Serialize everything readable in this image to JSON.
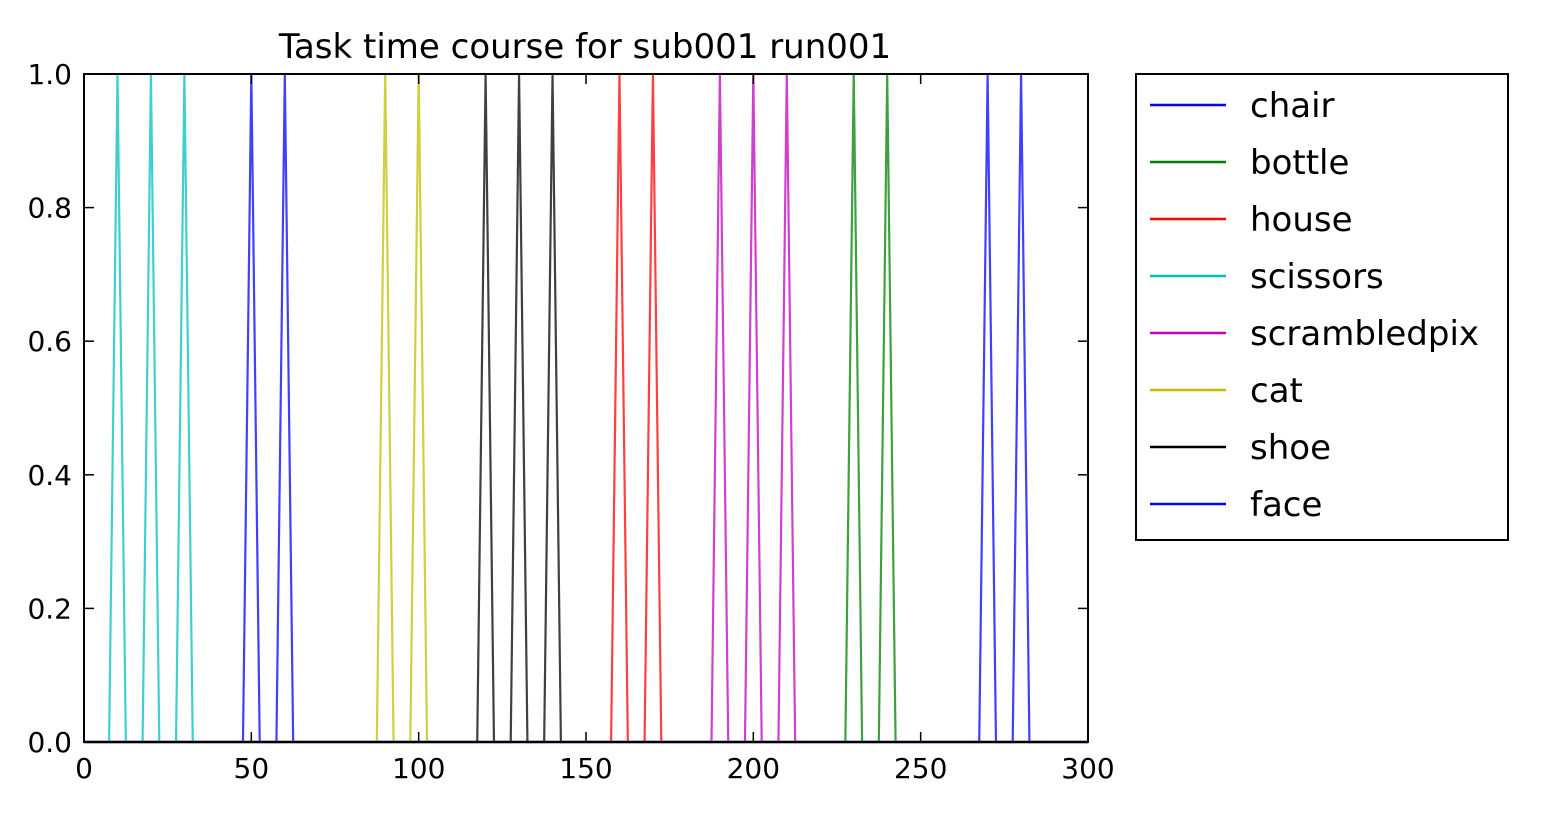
{
  "chart_data": {
    "type": "line",
    "title": "Task time course for sub001 run001",
    "xlabel": "",
    "ylabel": "",
    "xlim": [
      0,
      300
    ],
    "ylim": [
      0.0,
      1.0
    ],
    "xticks": [
      0,
      50,
      100,
      150,
      200,
      250,
      300
    ],
    "xtick_labels": [
      "0",
      "50",
      "100",
      "150",
      "200",
      "250",
      "300"
    ],
    "yticks": [
      0.0,
      0.2,
      0.4,
      0.6,
      0.8,
      1.0
    ],
    "ytick_labels": [
      "0.0",
      "0.2",
      "0.4",
      "0.6",
      "0.8",
      "1.0"
    ],
    "grid": false,
    "legend_position": "outside-right",
    "series": [
      {
        "name": "chair",
        "color": "#0000ff",
        "peaks": [
          50,
          60
        ],
        "halfwidth": 2.5
      },
      {
        "name": "bottle",
        "color": "#008000",
        "peaks": [
          230,
          240
        ],
        "halfwidth": 2.5
      },
      {
        "name": "house",
        "color": "#ff0000",
        "peaks": [
          160,
          170
        ],
        "halfwidth": 2.5
      },
      {
        "name": "scissors",
        "color": "#00bfbf",
        "peaks": [
          10,
          20,
          30
        ],
        "halfwidth": 2.5
      },
      {
        "name": "scrambledpix",
        "color": "#bf00bf",
        "peaks": [
          190,
          200,
          210
        ],
        "halfwidth": 2.5
      },
      {
        "name": "cat",
        "color": "#bfbf00",
        "peaks": [
          90,
          100
        ],
        "halfwidth": 2.5
      },
      {
        "name": "shoe",
        "color": "#000000",
        "peaks": [
          120,
          130,
          140
        ],
        "halfwidth": 2.5
      },
      {
        "name": "face",
        "color": "#0000ff",
        "peaks": [
          270,
          280
        ],
        "halfwidth": 2.5
      }
    ]
  }
}
